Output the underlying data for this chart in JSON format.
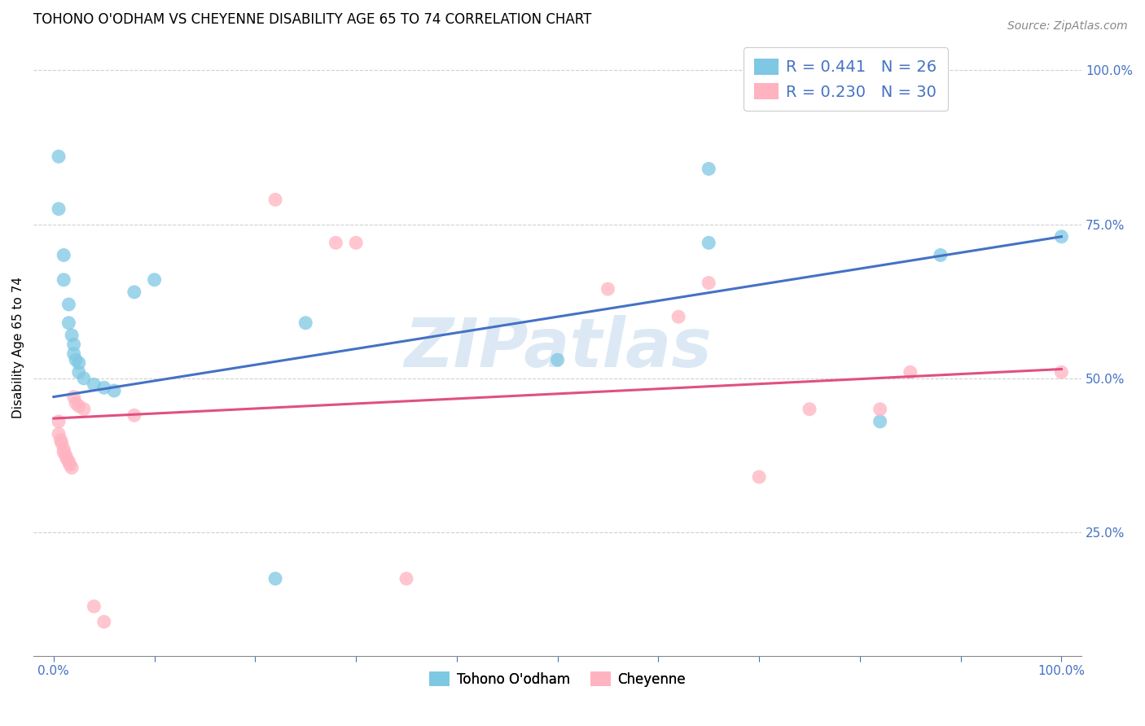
{
  "title": "TOHONO O'ODHAM VS CHEYENNE DISABILITY AGE 65 TO 74 CORRELATION CHART",
  "source": "Source: ZipAtlas.com",
  "ylabel": "Disability Age 65 to 74",
  "xlim": [
    -0.02,
    1.02
  ],
  "ylim": [
    0.05,
    1.05
  ],
  "xtick_positions": [
    0.0,
    0.1,
    0.2,
    0.3,
    0.4,
    0.5,
    0.6,
    0.7,
    0.8,
    0.9,
    1.0
  ],
  "xtick_labeled": [
    0.0,
    1.0
  ],
  "xtick_label_values": [
    "0.0%",
    "100.0%"
  ],
  "ytick_positions": [
    0.25,
    0.5,
    0.75,
    1.0
  ],
  "ytick_label_values": [
    "25.0%",
    "50.0%",
    "75.0%",
    "100.0%"
  ],
  "legend1_label": "R = 0.441   N = 26",
  "legend2_label": "R = 0.230   N = 30",
  "bottom_legend1": "Tohono O'odham",
  "bottom_legend2": "Cheyenne",
  "tohono_color": "#7ec8e3",
  "cheyenne_color": "#ffb3c1",
  "tohono_scatter": [
    [
      0.005,
      0.86
    ],
    [
      0.005,
      0.775
    ],
    [
      0.01,
      0.7
    ],
    [
      0.01,
      0.66
    ],
    [
      0.015,
      0.62
    ],
    [
      0.015,
      0.59
    ],
    [
      0.018,
      0.57
    ],
    [
      0.02,
      0.555
    ],
    [
      0.02,
      0.54
    ],
    [
      0.022,
      0.53
    ],
    [
      0.025,
      0.525
    ],
    [
      0.025,
      0.51
    ],
    [
      0.03,
      0.5
    ],
    [
      0.04,
      0.49
    ],
    [
      0.05,
      0.485
    ],
    [
      0.06,
      0.48
    ],
    [
      0.08,
      0.64
    ],
    [
      0.1,
      0.66
    ],
    [
      0.22,
      0.175
    ],
    [
      0.25,
      0.59
    ],
    [
      0.5,
      0.53
    ],
    [
      0.65,
      0.72
    ],
    [
      0.65,
      0.84
    ],
    [
      0.82,
      0.43
    ],
    [
      0.88,
      0.7
    ],
    [
      1.0,
      0.73
    ]
  ],
  "cheyenne_scatter": [
    [
      0.005,
      0.43
    ],
    [
      0.005,
      0.41
    ],
    [
      0.007,
      0.4
    ],
    [
      0.008,
      0.395
    ],
    [
      0.01,
      0.385
    ],
    [
      0.01,
      0.38
    ],
    [
      0.012,
      0.375
    ],
    [
      0.013,
      0.37
    ],
    [
      0.015,
      0.365
    ],
    [
      0.016,
      0.36
    ],
    [
      0.018,
      0.355
    ],
    [
      0.02,
      0.47
    ],
    [
      0.022,
      0.46
    ],
    [
      0.025,
      0.455
    ],
    [
      0.03,
      0.45
    ],
    [
      0.04,
      0.13
    ],
    [
      0.05,
      0.105
    ],
    [
      0.08,
      0.44
    ],
    [
      0.22,
      0.79
    ],
    [
      0.28,
      0.72
    ],
    [
      0.3,
      0.72
    ],
    [
      0.35,
      0.175
    ],
    [
      0.55,
      0.645
    ],
    [
      0.62,
      0.6
    ],
    [
      0.65,
      0.655
    ],
    [
      0.7,
      0.34
    ],
    [
      0.75,
      0.45
    ],
    [
      0.82,
      0.45
    ],
    [
      0.85,
      0.51
    ],
    [
      1.0,
      0.51
    ]
  ],
  "tohono_line": [
    0.0,
    0.47,
    1.0,
    0.73
  ],
  "cheyenne_line": [
    0.0,
    0.435,
    1.0,
    0.515
  ],
  "line_color_tohono": "#4472c4",
  "line_color_cheyenne": "#e05080",
  "background_color": "#ffffff",
  "grid_color": "#d0d0d0",
  "title_fontsize": 12,
  "axis_label_fontsize": 11,
  "tick_fontsize": 11,
  "source_fontsize": 10,
  "watermark_text": "ZIPatlas",
  "watermark_fontsize": 60
}
